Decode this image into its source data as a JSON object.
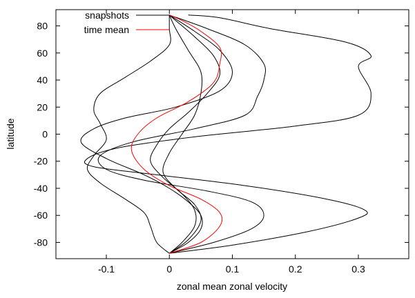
{
  "chart_data": {
    "type": "line",
    "title": "",
    "xlabel": "zonal mean zonal velocity",
    "ylabel": "latitude",
    "xlim": [
      -0.18,
      0.38
    ],
    "ylim": [
      -92,
      92
    ],
    "x_ticks": [
      -0.1,
      0,
      0.1,
      0.2,
      0.3
    ],
    "x_tick_labels": [
      "-0.1",
      "0",
      "0.1",
      "0.2",
      "0.3"
    ],
    "y_ticks": [
      -80,
      -60,
      -40,
      -20,
      0,
      20,
      40,
      60,
      80
    ],
    "y_tick_labels": [
      "-80",
      "-60",
      "-40",
      "-20",
      "0",
      "20",
      "40",
      "60",
      "80"
    ],
    "grid": false,
    "legend_position": "top-left",
    "legend": [
      {
        "label": "snapshots",
        "color": "#000000"
      },
      {
        "label": "time mean",
        "color": "#ff0000"
      }
    ],
    "series": [
      {
        "legend": "snapshots",
        "color": "#000000",
        "points": [
          [
            0.0,
            -88
          ],
          [
            0.1,
            -82
          ],
          [
            0.22,
            -72
          ],
          [
            0.3,
            -62
          ],
          [
            0.31,
            -56
          ],
          [
            0.25,
            -48
          ],
          [
            0.12,
            -38
          ],
          [
            -0.02,
            -30
          ],
          [
            -0.12,
            -24
          ],
          [
            -0.13,
            -18
          ],
          [
            -0.08,
            -10
          ],
          [
            0.04,
            -2
          ],
          [
            0.2,
            6
          ],
          [
            0.3,
            14
          ],
          [
            0.32,
            30
          ],
          [
            0.3,
            50
          ],
          [
            0.32,
            58
          ],
          [
            0.28,
            68
          ],
          [
            0.16,
            78
          ],
          [
            0.08,
            86
          ],
          [
            0.03,
            88
          ]
        ]
      },
      {
        "legend": "snapshots",
        "color": "#000000",
        "points": [
          [
            0.0,
            -88
          ],
          [
            0.07,
            -80
          ],
          [
            0.13,
            -70
          ],
          [
            0.15,
            -60
          ],
          [
            0.13,
            -50
          ],
          [
            0.06,
            -42
          ],
          [
            -0.04,
            -34
          ],
          [
            -0.1,
            -26
          ],
          [
            -0.11,
            -16
          ],
          [
            -0.06,
            -6
          ],
          [
            0.04,
            4
          ],
          [
            0.12,
            14
          ],
          [
            0.14,
            28
          ],
          [
            0.15,
            40
          ],
          [
            0.15,
            52
          ],
          [
            0.12,
            66
          ],
          [
            0.06,
            78
          ],
          [
            0.0,
            88
          ]
        ]
      },
      {
        "legend": "snapshots",
        "color": "#000000",
        "points": [
          [
            0.0,
            -88
          ],
          [
            0.03,
            -80
          ],
          [
            0.05,
            -70
          ],
          [
            0.05,
            -60
          ],
          [
            0.03,
            -50
          ],
          [
            0.0,
            -40
          ],
          [
            -0.04,
            -30
          ],
          [
            -0.1,
            -18
          ],
          [
            -0.14,
            -6
          ],
          [
            -0.12,
            4
          ],
          [
            -0.07,
            12
          ],
          [
            0.01,
            20
          ],
          [
            0.08,
            32
          ],
          [
            0.1,
            46
          ],
          [
            0.08,
            62
          ],
          [
            0.04,
            76
          ],
          [
            0.0,
            88
          ]
        ]
      },
      {
        "legend": "snapshots",
        "color": "#000000",
        "points": [
          [
            0.0,
            -88
          ],
          [
            -0.02,
            -80
          ],
          [
            -0.03,
            -68
          ],
          [
            -0.04,
            -58
          ],
          [
            -0.07,
            -48
          ],
          [
            -0.11,
            -36
          ],
          [
            -0.13,
            -26
          ],
          [
            -0.12,
            -16
          ],
          [
            -0.1,
            -4
          ],
          [
            -0.11,
            8
          ],
          [
            -0.12,
            18
          ],
          [
            -0.11,
            30
          ],
          [
            -0.07,
            42
          ],
          [
            -0.03,
            54
          ],
          [
            0.0,
            66
          ],
          [
            0.0,
            78
          ],
          [
            0.0,
            88
          ]
        ]
      },
      {
        "legend": "snapshots",
        "color": "#000000",
        "points": [
          [
            0.0,
            -88
          ],
          [
            0.02,
            -80
          ],
          [
            0.04,
            -68
          ],
          [
            0.04,
            -56
          ],
          [
            0.02,
            -44
          ],
          [
            -0.01,
            -32
          ],
          [
            -0.03,
            -20
          ],
          [
            -0.02,
            -8
          ],
          [
            0.0,
            4
          ],
          [
            0.03,
            16
          ],
          [
            0.06,
            30
          ],
          [
            0.08,
            44
          ],
          [
            0.07,
            58
          ],
          [
            0.04,
            72
          ],
          [
            0.01,
            84
          ],
          [
            0.0,
            88
          ]
        ]
      },
      {
        "legend": "snapshots",
        "color": "#000000",
        "points": [
          [
            0.0,
            -88
          ],
          [
            0.03,
            -78
          ],
          [
            0.05,
            -64
          ],
          [
            0.04,
            -52
          ],
          [
            0.01,
            -40
          ],
          [
            -0.01,
            -28
          ],
          [
            0.0,
            -14
          ],
          [
            0.02,
            0
          ],
          [
            0.04,
            14
          ],
          [
            0.05,
            30
          ],
          [
            0.05,
            46
          ],
          [
            0.03,
            62
          ],
          [
            0.01,
            78
          ],
          [
            0.0,
            88
          ]
        ]
      },
      {
        "legend": "time mean",
        "color": "#ff0000",
        "points": [
          [
            0.0,
            -88
          ],
          [
            0.05,
            -80
          ],
          [
            0.08,
            -68
          ],
          [
            0.08,
            -58
          ],
          [
            0.05,
            -48
          ],
          [
            0.0,
            -38
          ],
          [
            -0.04,
            -26
          ],
          [
            -0.06,
            -12
          ],
          [
            -0.05,
            0
          ],
          [
            -0.02,
            12
          ],
          [
            0.03,
            24
          ],
          [
            0.07,
            38
          ],
          [
            0.08,
            52
          ],
          [
            0.08,
            64
          ],
          [
            0.05,
            76
          ],
          [
            0.02,
            84
          ],
          [
            0.0,
            88
          ]
        ]
      }
    ]
  }
}
